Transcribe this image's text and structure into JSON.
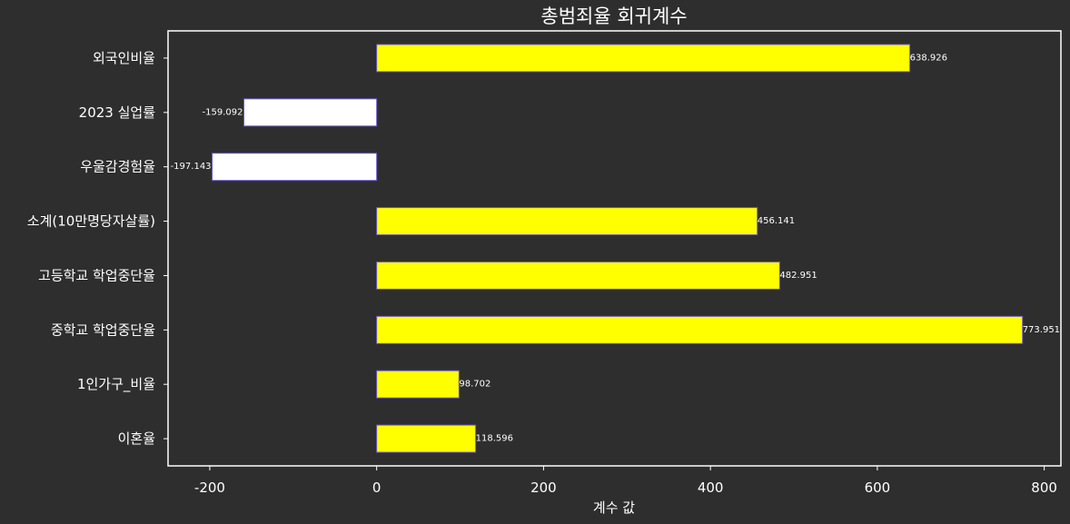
{
  "chart_data": {
    "type": "bar",
    "orientation": "horizontal",
    "title": "총범죄율 회귀계수",
    "xlabel": "계수 값",
    "ylabel": "",
    "xlim": [
      -250,
      820
    ],
    "xticks": [
      -200,
      0,
      200,
      400,
      600,
      800
    ],
    "xtick_labels": [
      "-200",
      "0",
      "200",
      "400",
      "600",
      "800"
    ],
    "grid": false,
    "categories": [
      "외국인비율",
      "2023 실업률",
      "우울감경험율",
      "소계(10만명당자살률)",
      "고등학교 학업중단율",
      "중학교 학업중단율",
      "1인가구_비율",
      "이혼율"
    ],
    "values": [
      638.926,
      -159.092,
      -197.143,
      456.141,
      482.951,
      773.951,
      98.702,
      118.596
    ],
    "value_labels": [
      "638.926",
      "-159.092",
      "-197.143",
      "456.141",
      "482.951",
      "773.951",
      "98.702",
      "118.596"
    ],
    "colors": {
      "positive": "#ffff00",
      "negative": "#ffffff",
      "bar_edge": "#6a5acd",
      "background": "#2e2e2e",
      "text": "#ffffff"
    }
  }
}
